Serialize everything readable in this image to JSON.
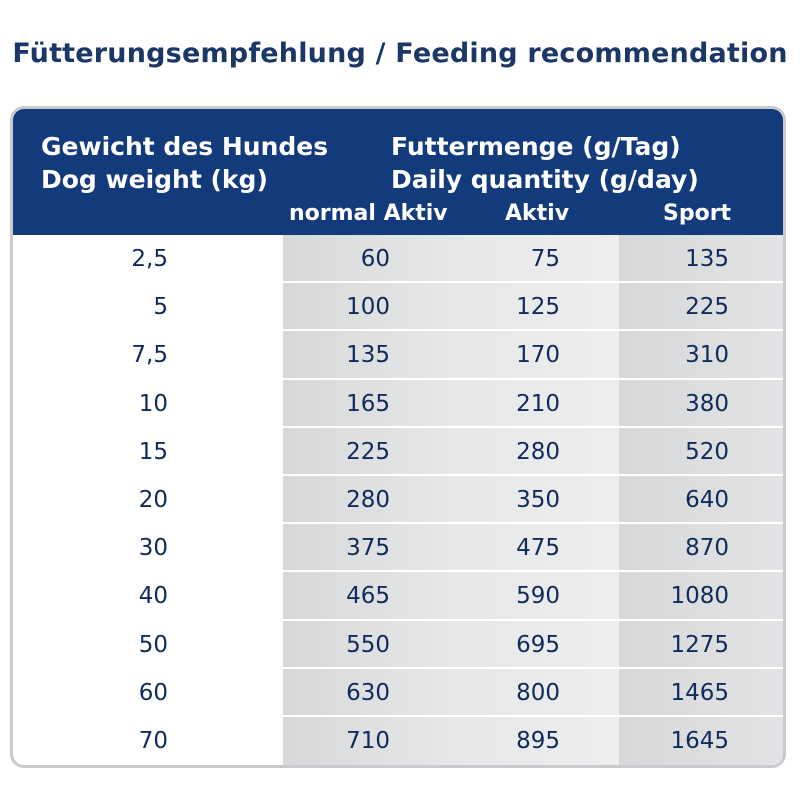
{
  "title": "Fütterungsempfehlung / Feeding recommendation",
  "header": {
    "weight_de": "Gewicht des Hundes",
    "weight_en": "Dog weight (kg)",
    "qty_de": "Futtermenge (g/Tag)",
    "qty_en": "Daily quantity (g/day)",
    "col_normal": "normal Aktiv",
    "col_aktiv": "Aktiv",
    "col_sport": "Sport"
  },
  "rows": [
    {
      "weight": "2,5",
      "normal": "60",
      "aktiv": "75",
      "sport": "135"
    },
    {
      "weight": "5",
      "normal": "100",
      "aktiv": "125",
      "sport": "225"
    },
    {
      "weight": "7,5",
      "normal": "135",
      "aktiv": "170",
      "sport": "310"
    },
    {
      "weight": "10",
      "normal": "165",
      "aktiv": "210",
      "sport": "380"
    },
    {
      "weight": "15",
      "normal": "225",
      "aktiv": "280",
      "sport": "520"
    },
    {
      "weight": "20",
      "normal": "280",
      "aktiv": "350",
      "sport": "640"
    },
    {
      "weight": "30",
      "normal": "375",
      "aktiv": "475",
      "sport": "870"
    },
    {
      "weight": "40",
      "normal": "465",
      "aktiv": "590",
      "sport": "1080"
    },
    {
      "weight": "50",
      "normal": "550",
      "aktiv": "695",
      "sport": "1275"
    },
    {
      "weight": "60",
      "normal": "630",
      "aktiv": "800",
      "sport": "1465"
    },
    {
      "weight": "70",
      "normal": "710",
      "aktiv": "895",
      "sport": "1645"
    }
  ],
  "colors": {
    "header_bg": "#133a7a",
    "title": "#1a3767",
    "text": "#0f2b5b",
    "border": "#c9cbcf"
  }
}
